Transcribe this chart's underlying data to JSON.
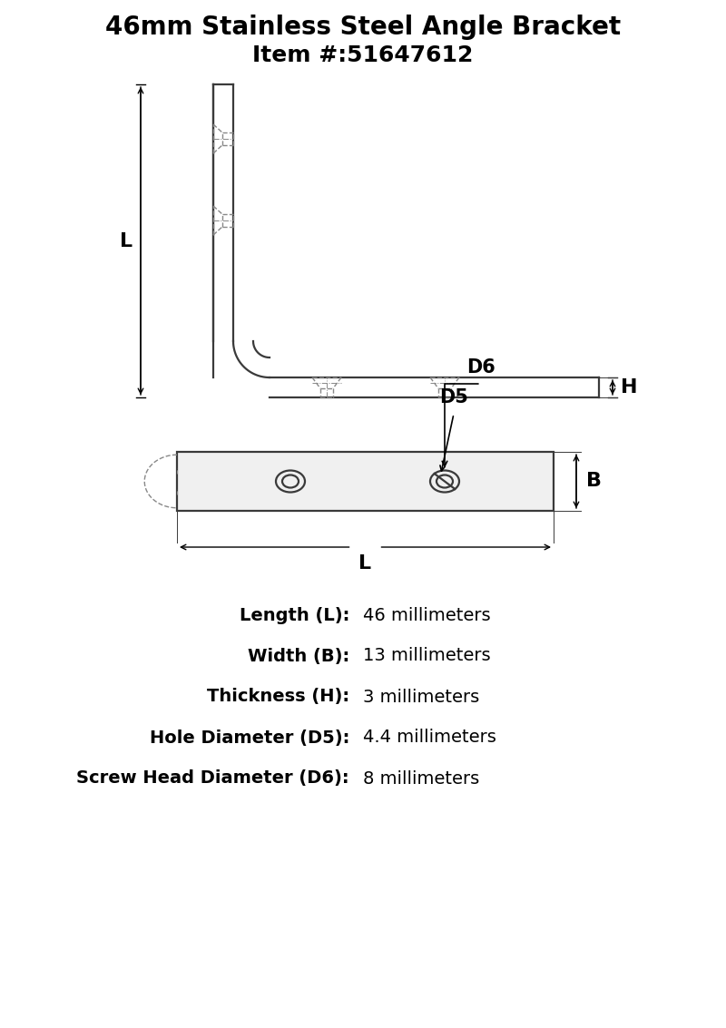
{
  "title": "46mm Stainless Steel Angle Bracket",
  "item_number": "Item #:51647612",
  "specs": [
    {
      "label": "Length (L):",
      "value": "46 millimeters"
    },
    {
      "label": "Width (B):",
      "value": "13 millimeters"
    },
    {
      "label": "Thickness (H):",
      "value": "3 millimeters"
    },
    {
      "label": "Hole Diameter (D5):",
      "value": "4.4 millimeters"
    },
    {
      "label": "Screw Head Diameter (D6):",
      "value": "8 millimeters"
    }
  ],
  "line_color": "#3a3a3a",
  "dashed_color": "#888888",
  "bg_color": "#ffffff",
  "text_color": "#000000",
  "lw_main": 1.6,
  "lw_dim": 1.0
}
